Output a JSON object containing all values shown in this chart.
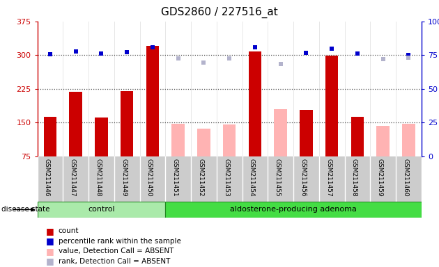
{
  "title": "GDS2860 / 227516_at",
  "samples": [
    "GSM211446",
    "GSM211447",
    "GSM211448",
    "GSM211449",
    "GSM211450",
    "GSM211451",
    "GSM211452",
    "GSM211453",
    "GSM211454",
    "GSM211455",
    "GSM211456",
    "GSM211457",
    "GSM211458",
    "GSM211459",
    "GSM211460"
  ],
  "n_control": 5,
  "n_adenoma": 10,
  "count_values": [
    163,
    218,
    161,
    220,
    320,
    null,
    null,
    null,
    308,
    null,
    178,
    298,
    163,
    null,
    null
  ],
  "percentile_values": [
    302,
    308,
    303,
    307,
    318,
    null,
    null,
    null,
    318,
    280,
    305,
    315,
    303,
    null,
    300
  ],
  "absent_value_values": [
    null,
    null,
    null,
    null,
    null,
    147,
    137,
    146,
    null,
    180,
    null,
    null,
    null,
    142,
    147
  ],
  "absent_rank_values": [
    null,
    null,
    null,
    null,
    null,
    292,
    283,
    292,
    null,
    280,
    null,
    null,
    null,
    291,
    294
  ],
  "ylim_left": [
    75,
    375
  ],
  "ylim_right": [
    0,
    100
  ],
  "yticks_left": [
    75,
    150,
    225,
    300,
    375
  ],
  "yticks_right": [
    0,
    25,
    50,
    75,
    100
  ],
  "ytick_right_labels": [
    "0",
    "25",
    "50",
    "75",
    "100%"
  ],
  "count_color": "#cc0000",
  "absent_value_color": "#ffb3b3",
  "percentile_color": "#0000cc",
  "absent_rank_color": "#b3b3cc",
  "control_fill": "#aaeaaa",
  "adenoma_fill": "#44dd44",
  "tick_area_bg": "#cccccc",
  "title_fontsize": 11,
  "axis_fontsize": 8,
  "legend_fontsize": 8,
  "dotted_lines": [
    150,
    225,
    300
  ],
  "hline_color": "#555555",
  "marker_size": 5,
  "bar_width": 0.5
}
